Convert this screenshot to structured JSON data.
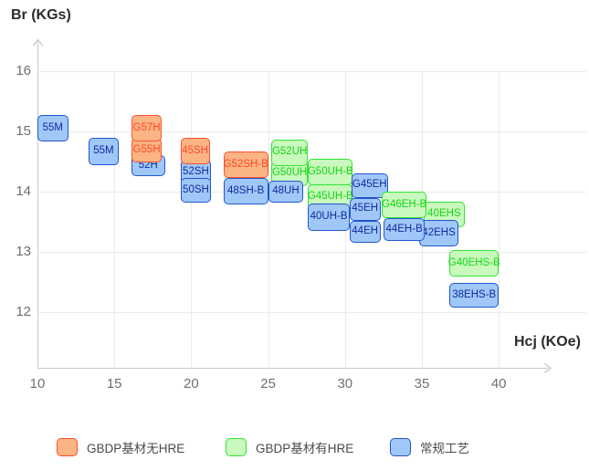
{
  "chart_data": {
    "type": "scatter",
    "title_y": "Br (KGs)",
    "title_x": "Hcj (KOe)",
    "x_axis": {
      "label": "Hcj (KOe)",
      "min": 10,
      "max": 40,
      "ticks": [
        10,
        15,
        20,
        25,
        30,
        35,
        40
      ]
    },
    "y_axis": {
      "label": "Br (KGs)",
      "min": 12,
      "max": 16,
      "ticks": [
        16,
        15,
        14,
        13,
        12
      ]
    },
    "grid": true,
    "legend_position": "bottom",
    "legend": [
      {
        "key": "gbdp_no_hre",
        "label": "GBDP基材无HRE",
        "fill": "#FBB484",
        "border": "#FF5030",
        "text": "#FF4A26"
      },
      {
        "key": "gbdp_hre",
        "label": "GBDP基材有HRE",
        "fill": "#C9F9BD",
        "border": "#33E433",
        "text": "#13D713"
      },
      {
        "key": "conventional",
        "label": "常规工艺",
        "fill": "#9FC8F8",
        "border": "#2355CF",
        "text": "#13299E"
      }
    ],
    "items": [
      {
        "label": "52H",
        "series": "conventional",
        "hcj": [
          16.1,
          18.3
        ],
        "br": [
          14.25,
          14.61
        ]
      },
      {
        "label": "G55H",
        "series": "gbdp_no_hre",
        "hcj": [
          16.1,
          18.1
        ],
        "br": [
          14.48,
          14.9
        ]
      },
      {
        "label": "G57H",
        "series": "gbdp_no_hre",
        "hcj": [
          16.1,
          18.1
        ],
        "br": [
          14.84,
          15.27
        ]
      },
      {
        "label": "55M",
        "series": "conventional",
        "hcj": [
          10.0,
          12.0
        ],
        "br": [
          14.83,
          15.27
        ]
      },
      {
        "label": "55M",
        "series": "conventional",
        "hcj": [
          13.3,
          15.3
        ],
        "br": [
          14.44,
          14.9
        ]
      },
      {
        "label": "52SH",
        "series": "conventional",
        "hcj": [
          19.3,
          21.3
        ],
        "br": [
          14.12,
          14.53
        ]
      },
      {
        "label": "50SH",
        "series": "conventional",
        "hcj": [
          19.3,
          21.3
        ],
        "br": [
          13.82,
          14.22
        ]
      },
      {
        "label": "45SH",
        "series": "gbdp_no_hre",
        "hcj": [
          19.3,
          21.2
        ],
        "br": [
          14.45,
          14.89
        ]
      },
      {
        "label": "G52SH-B",
        "series": "gbdp_no_hre",
        "hcj": [
          22.1,
          25.0
        ],
        "br": [
          14.22,
          14.66
        ]
      },
      {
        "label": "48SH-B",
        "series": "conventional",
        "hcj": [
          22.1,
          25.0
        ],
        "br": [
          13.79,
          14.22
        ]
      },
      {
        "label": "G50UH",
        "series": "gbdp_hre",
        "hcj": [
          25.2,
          27.6
        ],
        "br": [
          14.09,
          14.51
        ]
      },
      {
        "label": "G52UH",
        "series": "gbdp_hre",
        "hcj": [
          25.2,
          27.6
        ],
        "br": [
          14.43,
          14.87
        ]
      },
      {
        "label": "48UH",
        "series": "conventional",
        "hcj": [
          25.0,
          27.3
        ],
        "br": [
          13.82,
          14.18
        ]
      },
      {
        "label": "G45UH-B",
        "series": "gbdp_hre",
        "hcj": [
          27.6,
          30.5
        ],
        "br": [
          13.71,
          14.12
        ]
      },
      {
        "label": "G50UH-B",
        "series": "gbdp_hre",
        "hcj": [
          27.6,
          30.5
        ],
        "br": [
          14.1,
          14.54
        ]
      },
      {
        "label": "40UH-B",
        "series": "conventional",
        "hcj": [
          27.6,
          30.3
        ],
        "br": [
          13.35,
          13.81
        ]
      },
      {
        "label": "G45EH",
        "series": "conventional",
        "hcj": [
          30.4,
          32.8
        ],
        "br": [
          13.9,
          14.31
        ]
      },
      {
        "label": "44EH",
        "series": "conventional",
        "hcj": [
          30.3,
          32.3
        ],
        "br": [
          13.15,
          13.52
        ]
      },
      {
        "label": "45EH",
        "series": "conventional",
        "hcj": [
          30.3,
          32.3
        ],
        "br": [
          13.52,
          13.9
        ]
      },
      {
        "label": "40EHS",
        "series": "gbdp_hre",
        "hcj": [
          35.1,
          37.8
        ],
        "br": [
          13.41,
          13.84
        ]
      },
      {
        "label": "G46EH-B",
        "series": "gbdp_hre",
        "hcj": [
          32.4,
          35.3
        ],
        "br": [
          13.56,
          14.0
        ]
      },
      {
        "label": "42EHS",
        "series": "conventional",
        "hcj": [
          34.8,
          37.4
        ],
        "br": [
          13.09,
          13.53
        ]
      },
      {
        "label": "44EH-B",
        "series": "conventional",
        "hcj": [
          32.5,
          35.2
        ],
        "br": [
          13.18,
          13.56
        ]
      },
      {
        "label": "G40EHS-B",
        "series": "gbdp_hre",
        "hcj": [
          36.8,
          40.0
        ],
        "br": [
          12.59,
          13.03
        ]
      },
      {
        "label": "38EHS-B",
        "series": "conventional",
        "hcj": [
          36.8,
          40.0
        ],
        "br": [
          12.07,
          12.48
        ]
      }
    ]
  }
}
